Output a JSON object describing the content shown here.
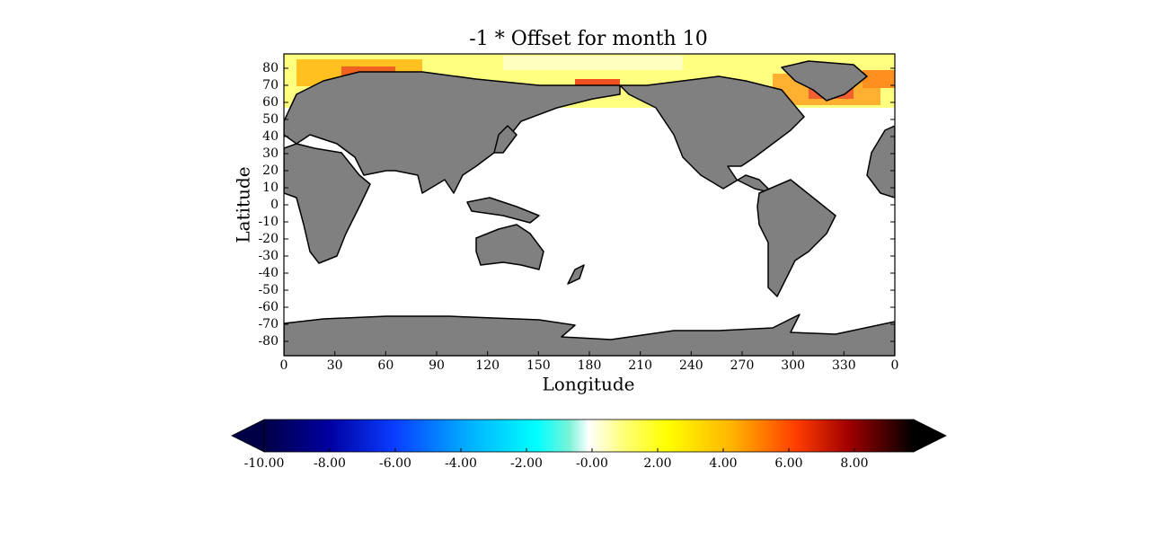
{
  "title": "-1 * Offset for month 10",
  "x_label": "Longitude",
  "y_label": "Latitude",
  "xlim": [
    0,
    360
  ],
  "xticks": [
    0,
    30,
    60,
    90,
    120,
    150,
    180,
    210,
    240,
    270,
    300,
    330,
    {
      "value": 360,
      "label": "0"
    }
  ],
  "ylim": [
    -88.4,
    88.4
  ],
  "yticks": [
    80,
    70,
    60,
    50,
    40,
    30,
    20,
    10,
    0,
    -10,
    -20,
    -30,
    -40,
    -50,
    -60,
    -70,
    -80
  ],
  "colorbar": {
    "clim": [
      -10,
      10
    ],
    "ticks": [
      {
        "value": -10,
        "label": "-10.00"
      },
      {
        "value": -8,
        "label": "-8.00"
      },
      {
        "value": -6,
        "label": "-6.00"
      },
      {
        "value": -4,
        "label": "-4.00"
      },
      {
        "value": -2,
        "label": "-2.00"
      },
      {
        "value": 0,
        "label": "-0.00"
      },
      {
        "value": 2,
        "label": "2.00"
      },
      {
        "value": 4,
        "label": "4.00"
      },
      {
        "value": 6,
        "label": "6.00"
      },
      {
        "value": 8,
        "label": "8.00"
      }
    ]
  }
}
